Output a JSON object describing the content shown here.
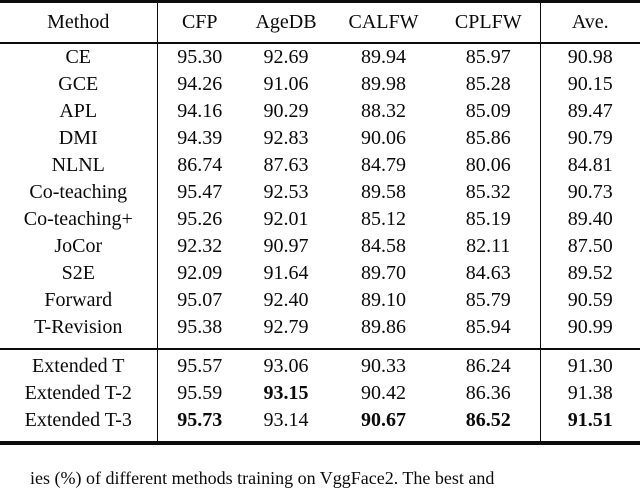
{
  "table": {
    "columns": [
      "Method",
      "CFP",
      "AgeDB",
      "CALFW",
      "CPLFW",
      "Ave."
    ],
    "groups": [
      {
        "rows": [
          {
            "cells": [
              "CE",
              "95.30",
              "92.69",
              "89.94",
              "85.97",
              "90.98"
            ],
            "bold": [
              false,
              false,
              false,
              false,
              false,
              false
            ]
          },
          {
            "cells": [
              "GCE",
              "94.26",
              "91.06",
              "89.98",
              "85.28",
              "90.15"
            ],
            "bold": [
              false,
              false,
              false,
              false,
              false,
              false
            ]
          },
          {
            "cells": [
              "APL",
              "94.16",
              "90.29",
              "88.32",
              "85.09",
              "89.47"
            ],
            "bold": [
              false,
              false,
              false,
              false,
              false,
              false
            ]
          },
          {
            "cells": [
              "DMI",
              "94.39",
              "92.83",
              "90.06",
              "85.86",
              "90.79"
            ],
            "bold": [
              false,
              false,
              false,
              false,
              false,
              false
            ]
          },
          {
            "cells": [
              "NLNL",
              "86.74",
              "87.63",
              "84.79",
              "80.06",
              "84.81"
            ],
            "bold": [
              false,
              false,
              false,
              false,
              false,
              false
            ]
          },
          {
            "cells": [
              "Co-teaching",
              "95.47",
              "92.53",
              "89.58",
              "85.32",
              "90.73"
            ],
            "bold": [
              false,
              false,
              false,
              false,
              false,
              false
            ]
          },
          {
            "cells": [
              "Co-teaching+",
              "95.26",
              "92.01",
              "85.12",
              "85.19",
              "89.40"
            ],
            "bold": [
              false,
              false,
              false,
              false,
              false,
              false
            ]
          },
          {
            "cells": [
              "JoCor",
              "92.32",
              "90.97",
              "84.58",
              "82.11",
              "87.50"
            ],
            "bold": [
              false,
              false,
              false,
              false,
              false,
              false
            ]
          },
          {
            "cells": [
              "S2E",
              "92.09",
              "91.64",
              "89.70",
              "84.63",
              "89.52"
            ],
            "bold": [
              false,
              false,
              false,
              false,
              false,
              false
            ]
          },
          {
            "cells": [
              "Forward",
              "95.07",
              "92.40",
              "89.10",
              "85.79",
              "90.59"
            ],
            "bold": [
              false,
              false,
              false,
              false,
              false,
              false
            ]
          },
          {
            "cells": [
              "T-Revision",
              "95.38",
              "92.79",
              "89.86",
              "85.94",
              "90.99"
            ],
            "bold": [
              false,
              false,
              false,
              false,
              false,
              false
            ]
          }
        ]
      },
      {
        "rows": [
          {
            "cells": [
              "Extended T",
              "95.57",
              "93.06",
              "90.33",
              "86.24",
              "91.30"
            ],
            "bold": [
              false,
              false,
              false,
              false,
              false,
              false
            ]
          },
          {
            "cells": [
              "Extended T-2",
              "95.59",
              "93.15",
              "90.42",
              "86.36",
              "91.38"
            ],
            "bold": [
              false,
              false,
              true,
              false,
              false,
              false
            ]
          },
          {
            "cells": [
              "Extended T-3",
              "95.73",
              "93.14",
              "90.67",
              "86.52",
              "91.51"
            ],
            "bold": [
              false,
              true,
              false,
              true,
              true,
              true
            ]
          }
        ]
      }
    ]
  },
  "caption_fragment": "ies (%) of different methods training on VggFace2. The best and"
}
